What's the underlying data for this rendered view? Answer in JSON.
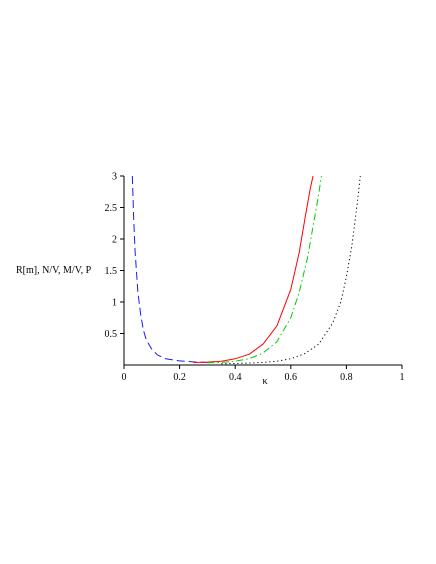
{
  "chart_data": {
    "type": "line",
    "xlabel": "κ",
    "ylabel": "R[m], N/V, M/V, P",
    "xlim": [
      0,
      1
    ],
    "ylim": [
      0,
      3
    ],
    "xticks": [
      "0",
      "0.2",
      "0.4",
      "0.6",
      "0.8",
      "1"
    ],
    "xtick_values": [
      0,
      0.2,
      0.4,
      0.6,
      0.8,
      1
    ],
    "yticks": [
      "0.5",
      "1",
      "1.5",
      "2",
      "2.5",
      "3"
    ],
    "ytick_values": [
      0.5,
      1,
      1.5,
      2,
      2.5,
      3
    ],
    "grid": false,
    "series": [
      {
        "color": "#1a1aff",
        "dash": "dashed",
        "x": [
          0.03,
          0.035,
          0.04,
          0.05,
          0.06,
          0.07,
          0.08,
          0.1,
          0.12,
          0.15,
          0.2,
          0.25,
          0.3
        ],
        "y": [
          3.0,
          2.3,
          1.8,
          1.15,
          0.8,
          0.55,
          0.4,
          0.25,
          0.16,
          0.1,
          0.065,
          0.05,
          0.04
        ]
      },
      {
        "color": "#ff0000",
        "dash": "solid",
        "x": [
          0.25,
          0.3,
          0.35,
          0.4,
          0.45,
          0.5,
          0.55,
          0.6,
          0.63,
          0.65,
          0.67,
          0.68
        ],
        "y": [
          0.04,
          0.045,
          0.06,
          0.1,
          0.17,
          0.33,
          0.62,
          1.2,
          1.78,
          2.3,
          2.8,
          3.0
        ]
      },
      {
        "color": "#00cc00",
        "dash": "dashdot",
        "x": [
          0.3,
          0.35,
          0.4,
          0.45,
          0.5,
          0.55,
          0.6,
          0.63,
          0.66,
          0.68,
          0.7,
          0.71
        ],
        "y": [
          0.035,
          0.04,
          0.06,
          0.1,
          0.19,
          0.37,
          0.75,
          1.15,
          1.7,
          2.2,
          2.7,
          3.0
        ]
      },
      {
        "color": "#000000",
        "dash": "dotted",
        "x": [
          0.35,
          0.4,
          0.45,
          0.5,
          0.55,
          0.6,
          0.65,
          0.7,
          0.75,
          0.78,
          0.8,
          0.82,
          0.84,
          0.85
        ],
        "y": [
          0.02,
          0.025,
          0.03,
          0.04,
          0.06,
          0.1,
          0.18,
          0.33,
          0.66,
          1.0,
          1.4,
          1.9,
          2.6,
          3.0
        ]
      }
    ]
  }
}
